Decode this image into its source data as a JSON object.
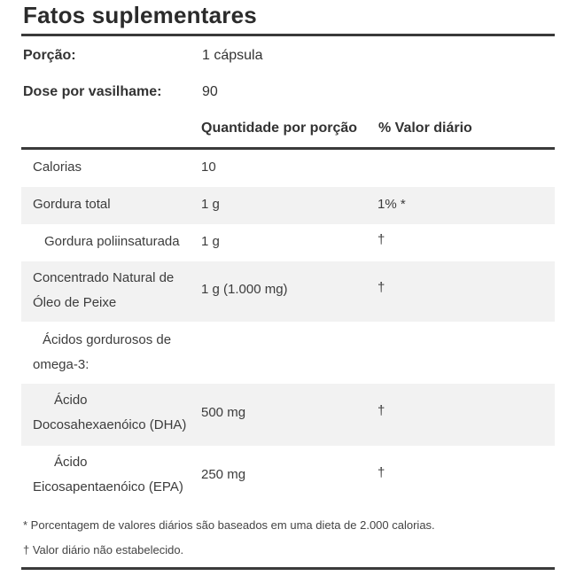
{
  "title": "Fatos suplementares",
  "serving": {
    "label": "Porção:",
    "value": "1 cápsula"
  },
  "servings_per_container": {
    "label": "Dose por vasilhame:",
    "value": "90"
  },
  "headers": {
    "amount": "Quantidade por porção",
    "daily_value": "% Valor diário"
  },
  "rows": [
    {
      "name": "Calorias",
      "amount": "10",
      "dv": ""
    },
    {
      "name": "Gordura total",
      "amount": "1 g",
      "dv": "1% *"
    },
    {
      "name": "Gordura poliinsaturada",
      "amount": "1 g",
      "dv": "†"
    },
    {
      "name_lines": [
        "Concentrado Natural de",
        "Óleo de Peixe"
      ],
      "amount": "1 g (1.000 mg)",
      "dv": "†"
    },
    {
      "name_lines": [
        "Ácidos gordurosos de",
        "omega-3:"
      ],
      "amount": "",
      "dv": ""
    },
    {
      "name_lines": [
        "Ácido",
        "Docosahexaenóico (DHA)"
      ],
      "amount": "500 mg",
      "dv": "†"
    },
    {
      "name_lines": [
        "Ácido",
        "Eicosapentaenóico (EPA)"
      ],
      "amount": "250 mg",
      "dv": "†"
    }
  ],
  "footnotes": [
    "* Porcentagem de valores diários são baseados em uma dieta de 2.000 calorias.",
    "† Valor diário não estabelecido."
  ]
}
